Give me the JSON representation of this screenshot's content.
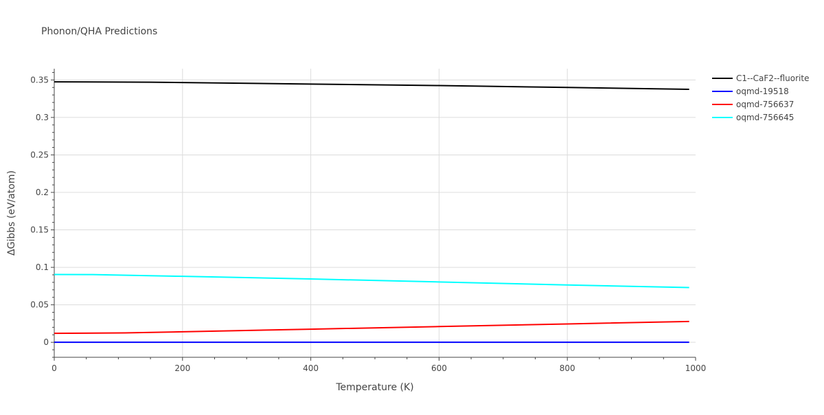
{
  "chart_data": {
    "type": "line",
    "title": "Phonon/QHA Predictions",
    "xlabel": "Temperature (K)",
    "ylabel": "ΔGibbs (eV/atom)",
    "xlim": [
      0,
      1000
    ],
    "ylim": [
      -0.02,
      0.365
    ],
    "x_ticks": [
      0,
      200,
      400,
      600,
      800,
      1000
    ],
    "y_ticks": [
      0,
      0.05,
      0.1,
      0.15,
      0.2,
      0.25,
      0.3,
      0.35
    ],
    "x_tick_labels": [
      "0",
      "200",
      "400",
      "600",
      "800",
      "1000"
    ],
    "y_tick_labels": [
      "0",
      "0.05",
      "0.1",
      "0.15",
      "0.2",
      "0.25",
      "0.3",
      "0.35"
    ],
    "grid": true,
    "legend_position": "top-right-outside",
    "series": [
      {
        "name": "C1--CaF2--fluorite",
        "color": "#000000",
        "x": [
          0,
          150,
          400,
          600,
          800,
          990
        ],
        "y": [
          0.3475,
          0.347,
          0.3445,
          0.3425,
          0.34,
          0.3375
        ]
      },
      {
        "name": "oqmd-19518",
        "color": "#0000ff",
        "x": [
          0,
          200,
          400,
          600,
          800,
          990
        ],
        "y": [
          0,
          0,
          0,
          0,
          0,
          0
        ]
      },
      {
        "name": "oqmd-756637",
        "color": "#ff0000",
        "x": [
          0,
          110,
          200,
          400,
          600,
          800,
          990
        ],
        "y": [
          0.012,
          0.0125,
          0.014,
          0.0175,
          0.021,
          0.0245,
          0.0278
        ]
      },
      {
        "name": "oqmd-756645",
        "color": "#00ffff",
        "x": [
          0,
          60,
          200,
          400,
          600,
          800,
          990
        ],
        "y": [
          0.0905,
          0.0903,
          0.088,
          0.0845,
          0.0805,
          0.0765,
          0.073
        ]
      }
    ]
  }
}
